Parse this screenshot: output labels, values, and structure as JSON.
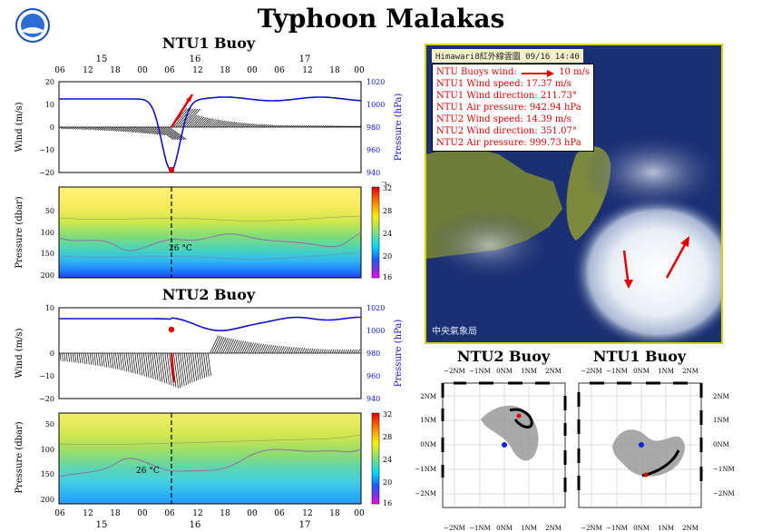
{
  "title": "Typhoon Malakas",
  "ntu1_buoy": {
    "title": "NTU1 Buoy",
    "wind_panel": {
      "ylabel_left": "Wind (m/s)",
      "ylabel_right": "Pressure (hPa)",
      "yticks_left": [
        "20",
        "10",
        "0",
        "−10",
        "−20"
      ],
      "yticks_right": [
        "1020",
        "1000",
        "980",
        "960",
        "940"
      ]
    },
    "pressure_panel": {
      "ylabel": "Pressure (dbar)",
      "yticks": [
        "50",
        "100",
        "150",
        "200"
      ],
      "colorbar_unit": "°C",
      "colorbar_ticks": [
        "32",
        "28",
        "24",
        "20",
        "16"
      ],
      "isotherm_label": "26 °C"
    },
    "time_ticks_top": [
      "06",
      "12",
      "18",
      "00",
      "06",
      "12",
      "18",
      "00",
      "06",
      "12",
      "18",
      "00"
    ],
    "day_labels_top": [
      "15",
      "16",
      "17"
    ]
  },
  "ntu2_buoy": {
    "title": "NTU2 Buoy",
    "wind_panel": {
      "ylabel_left": "Wind (m/s)",
      "ylabel_right": "Pressure (hPa)",
      "yticks_left": [
        "10",
        "0",
        "−10",
        "−20"
      ],
      "yticks_right": [
        "1020",
        "1000",
        "980",
        "960",
        "940"
      ]
    },
    "pressure_panel": {
      "ylabel": "Pressure (dbar)",
      "yticks": [
        "50",
        "100",
        "150",
        "200"
      ],
      "colorbar_ticks": [
        "32",
        "28",
        "24",
        "20",
        "16"
      ],
      "isotherm_label": "26 °C"
    },
    "time_ticks_bottom": [
      "06",
      "12",
      "18",
      "00",
      "06",
      "12",
      "18",
      "00",
      "06",
      "12",
      "18",
      "00"
    ],
    "day_labels_bottom": [
      "15",
      "16",
      "17"
    ]
  },
  "satellite": {
    "header": "Himawari8紅外線雲圖   09/16 14:40",
    "legend": {
      "scale_label": "NTU Buoys wind:",
      "scale_value": "10 m/s",
      "lines": [
        "NTU1 Wind speed: 17.37 m/s",
        "NTU1 Wind direction: 211.73°",
        "NTU1 Air pressure: 942.94 hPa",
        "NTU2 Wind speed: 14.39 m/s",
        "NTU2 Wind direction: 351.07°",
        "NTU2 Air pressure: 999.73 hPa"
      ]
    },
    "watermark": "中央氣象局"
  },
  "tracks": {
    "ntu2_title": "NTU2 Buoy",
    "ntu1_title": "NTU1 Buoy",
    "x_ticks": [
      "−2NM",
      "−1NM",
      "0NM",
      "1NM",
      "2NM"
    ],
    "y_ticks": [
      "2NM",
      "1NM",
      "0NM",
      "−1NM",
      "−2NM"
    ]
  },
  "chart_data": [
    {
      "type": "line",
      "title": "NTU1 Buoy",
      "xlabel": "",
      "ylabel": "Wind (m/s)",
      "y2label": "Pressure (hPa)",
      "ylim": [
        -20,
        20
      ],
      "y2lim": [
        940,
        1020
      ],
      "series": [],
      "pressure_min_hPa": 942.94,
      "colors": {
        "pressure": "#1010d0",
        "wind": "#000000",
        "current_marker": "#e00000"
      }
    },
    {
      "type": "heatmap",
      "ylabel": "Pressure (dbar)",
      "ylim": [
        200,
        0
      ],
      "colorbar": {
        "range": [
          16,
          32
        ],
        "unit": "°C"
      },
      "annotation": "26 °C"
    },
    {
      "type": "line",
      "title": "NTU2 Buoy",
      "xlabel": "",
      "ylabel": "Wind (m/s)",
      "y2label": "Pressure (hPa)",
      "ylim": [
        -20,
        10
      ],
      "y2lim": [
        940,
        1020
      ],
      "series": [],
      "pressure_min_hPa": 999.73,
      "colors": {
        "pressure": "#1010d0",
        "wind": "#000000",
        "current_marker": "#e00000"
      }
    },
    {
      "type": "heatmap",
      "ylabel": "Pressure (dbar)",
      "ylim": [
        200,
        0
      ],
      "colorbar": {
        "range": [
          16,
          32
        ],
        "unit": "°C"
      },
      "annotation": "26 °C"
    },
    {
      "type": "scatter",
      "title": "NTU2 Buoy",
      "xlim": [
        -2.5,
        2.5
      ],
      "ylim": [
        -2.5,
        2.5
      ],
      "anchor": [
        0,
        0
      ]
    },
    {
      "type": "scatter",
      "title": "NTU1 Buoy",
      "xlim": [
        -2.5,
        2.5
      ],
      "ylim": [
        -2.5,
        2.5
      ],
      "anchor": [
        0,
        0
      ]
    }
  ]
}
